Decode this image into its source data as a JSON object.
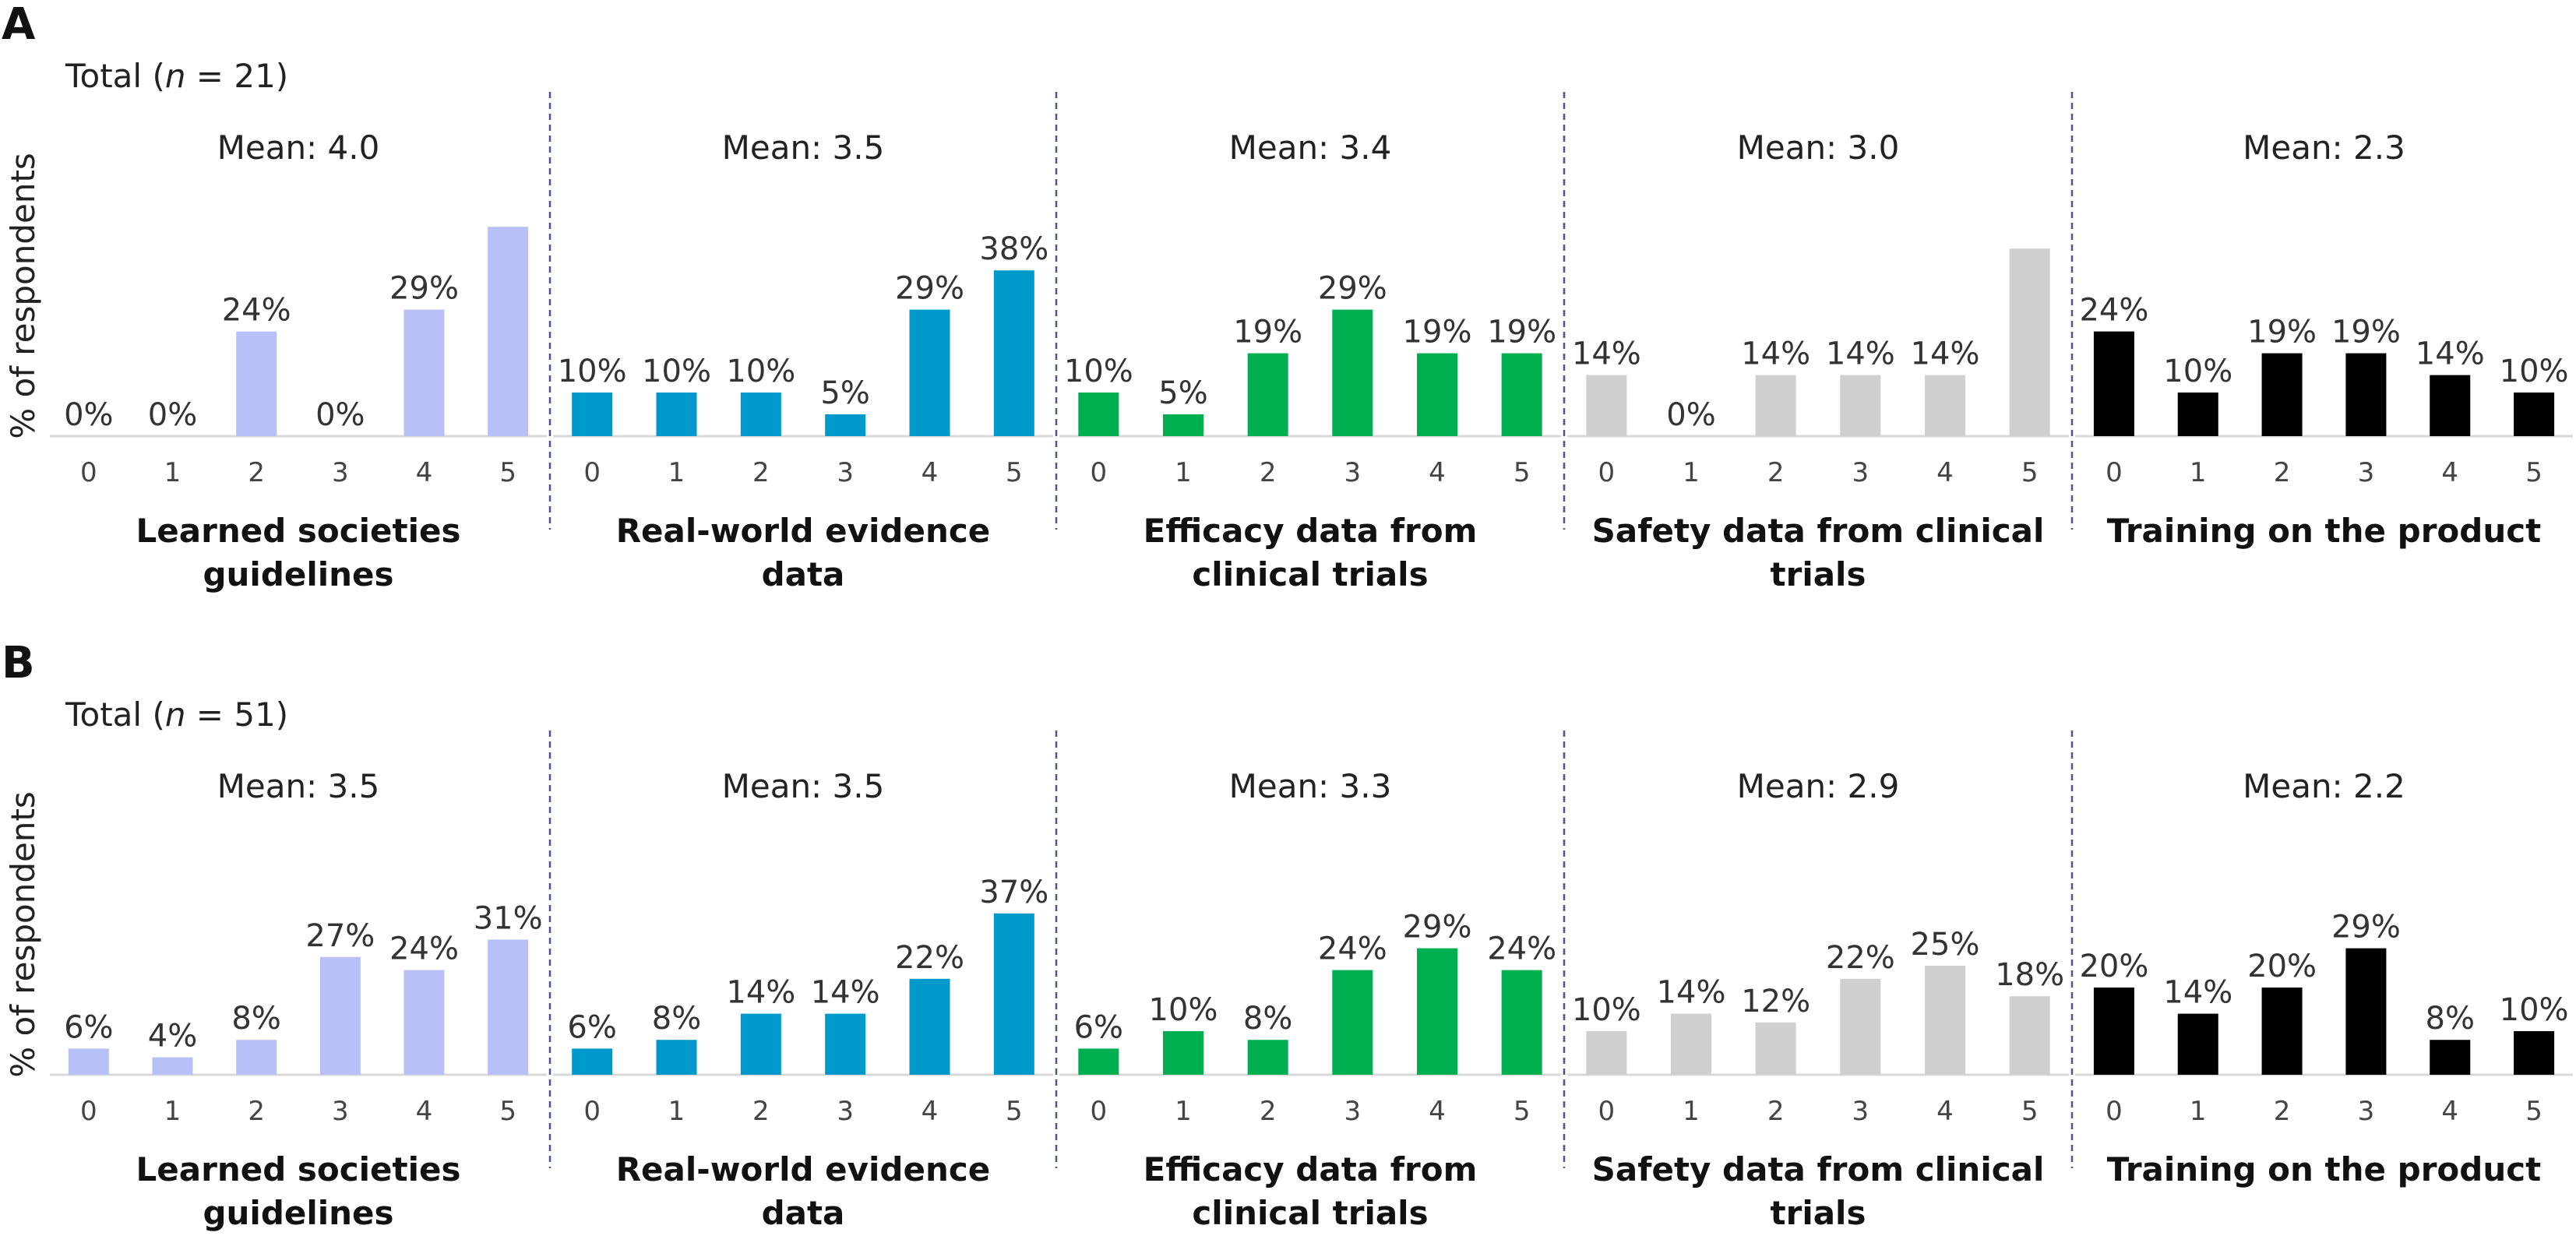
{
  "colors": {
    "learned": "#b8c1f7",
    "realworld": "#0099cc",
    "efficacy": "#00b050",
    "safety": "#cfcfcf",
    "training": "#000000",
    "divider": "#4b5590",
    "baseline": "#d9d9d9"
  },
  "chart_data": [
    {
      "type": "bar",
      "panel_label": "A",
      "total_label": "Total (n = 21)",
      "ylabel": "% of respondents",
      "categories": [
        "0",
        "1",
        "2",
        "3",
        "4",
        "5"
      ],
      "groups": [
        {
          "key": "learned",
          "title_lines": [
            "Learned societies",
            "guidelines"
          ],
          "mean_label": "Mean: 4.0",
          "values": [
            0,
            0,
            24,
            0,
            29,
            48
          ],
          "labels": [
            "0%",
            "0%",
            "24%",
            "0%",
            "29%",
            ""
          ]
        },
        {
          "key": "realworld",
          "title_lines": [
            "Real-world evidence",
            "data"
          ],
          "mean_label": "Mean: 3.5",
          "values": [
            10,
            10,
            10,
            5,
            29,
            38
          ],
          "labels": [
            "10%",
            "10%",
            "10%",
            "5%",
            "29%",
            "38%"
          ]
        },
        {
          "key": "efficacy",
          "title_lines": [
            "Efficacy data from",
            "clinical trials"
          ],
          "mean_label": "Mean: 3.4",
          "values": [
            10,
            5,
            19,
            29,
            19,
            19
          ],
          "labels": [
            "10%",
            "5%",
            "19%",
            "29%",
            "19%",
            "19%"
          ]
        },
        {
          "key": "safety",
          "title_lines": [
            "Safety data from clinical",
            "trials"
          ],
          "mean_label": "Mean: 3.0",
          "values": [
            14,
            0,
            14,
            14,
            14,
            43
          ],
          "labels": [
            "14%",
            "0%",
            "14%",
            "14%",
            "14%",
            ""
          ]
        },
        {
          "key": "training",
          "title_lines": [
            "Training on the product"
          ],
          "mean_label": "Mean: 2.3",
          "values": [
            24,
            10,
            19,
            19,
            14,
            10
          ],
          "labels": [
            "24%",
            "10%",
            "19%",
            "19%",
            "14%",
            "10%"
          ]
        }
      ]
    },
    {
      "type": "bar",
      "panel_label": "B",
      "total_label": "Total (n = 51)",
      "ylabel": "% of respondents",
      "categories": [
        "0",
        "1",
        "2",
        "3",
        "4",
        "5"
      ],
      "groups": [
        {
          "key": "learned",
          "title_lines": [
            "Learned societies",
            "guidelines"
          ],
          "mean_label": "Mean: 3.5",
          "values": [
            6,
            4,
            8,
            27,
            24,
            31
          ],
          "labels": [
            "6%",
            "4%",
            "8%",
            "27%",
            "24%",
            "31%"
          ]
        },
        {
          "key": "realworld",
          "title_lines": [
            "Real-world evidence",
            "data"
          ],
          "mean_label": "Mean: 3.5",
          "values": [
            6,
            8,
            14,
            14,
            22,
            37
          ],
          "labels": [
            "6%",
            "8%",
            "14%",
            "14%",
            "22%",
            "37%"
          ]
        },
        {
          "key": "efficacy",
          "title_lines": [
            "Efficacy data from",
            "clinical trials"
          ],
          "mean_label": "Mean: 3.3",
          "values": [
            6,
            10,
            8,
            24,
            29,
            24
          ],
          "labels": [
            "6%",
            "10%",
            "8%",
            "24%",
            "29%",
            "24%"
          ]
        },
        {
          "key": "safety",
          "title_lines": [
            "Safety data from clinical",
            "trials"
          ],
          "mean_label": "Mean: 2.9",
          "values": [
            10,
            14,
            12,
            22,
            25,
            18
          ],
          "labels": [
            "10%",
            "14%",
            "12%",
            "22%",
            "25%",
            "18%"
          ]
        },
        {
          "key": "training",
          "title_lines": [
            "Training on the product"
          ],
          "mean_label": "Mean: 2.2",
          "values": [
            20,
            14,
            20,
            29,
            8,
            10
          ],
          "labels": [
            "20%",
            "14%",
            "20%",
            "29%",
            "8%",
            "10%"
          ]
        }
      ]
    }
  ]
}
